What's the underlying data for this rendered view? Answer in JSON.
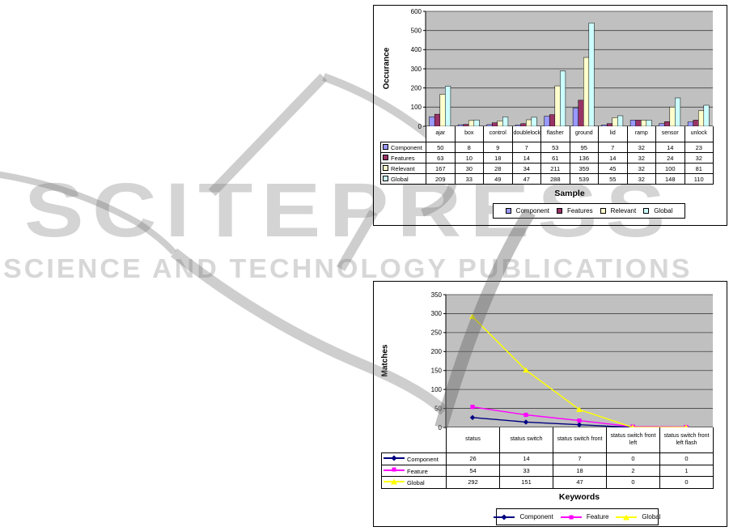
{
  "watermark": {
    "brand": "SCITEPRESS",
    "tagline": "SCIENCE AND TECHNOLOGY PUBLICATIONS"
  },
  "chart_data": [
    {
      "type": "bar",
      "title": "",
      "ylabel": "Occurance",
      "xlabel": "Sample",
      "ylim": [
        0,
        600
      ],
      "ytick_step": 100,
      "grid": true,
      "plot_bg": "#C0C0C0",
      "legend_position": "bottom",
      "categories": [
        "ajar",
        "box",
        "control",
        "doublelock",
        "flasher",
        "ground",
        "lid",
        "ramp",
        "sensor",
        "unlock"
      ],
      "series": [
        {
          "name": "Component",
          "color": "#9999FF",
          "values": [
            50,
            8,
            9,
            7,
            53,
            95,
            7,
            32,
            14,
            23
          ]
        },
        {
          "name": "Features",
          "color": "#993366",
          "values": [
            63,
            10,
            18,
            14,
            61,
            136,
            14,
            32,
            24,
            32
          ]
        },
        {
          "name": "Relevant",
          "color": "#FFFFCC",
          "values": [
            167,
            30,
            28,
            34,
            211,
            359,
            45,
            32,
            100,
            81
          ]
        },
        {
          "name": "Global",
          "color": "#CCFFFF",
          "values": [
            209,
            33,
            49,
            47,
            288,
            539,
            55,
            32,
            148,
            110
          ]
        }
      ]
    },
    {
      "type": "line",
      "title": "",
      "ylabel": "Matches",
      "xlabel": "Keywords",
      "ylim": [
        0,
        350
      ],
      "ytick_step": 50,
      "grid": true,
      "plot_bg": "#C0C0C0",
      "legend_position": "bottom",
      "categories": [
        "status",
        "status switch",
        "status switch front",
        "status switch front left",
        "status switch front left flash"
      ],
      "series": [
        {
          "name": "Component",
          "color": "#000080",
          "marker": "diamond",
          "values": [
            26,
            14,
            7,
            0,
            0
          ]
        },
        {
          "name": "Feature",
          "color": "#FF00FF",
          "marker": "square",
          "values": [
            54,
            33,
            18,
            2,
            1
          ]
        },
        {
          "name": "Global",
          "color": "#FFFF00",
          "marker": "triangle",
          "values": [
            292,
            151,
            47,
            0,
            0
          ]
        }
      ]
    }
  ]
}
